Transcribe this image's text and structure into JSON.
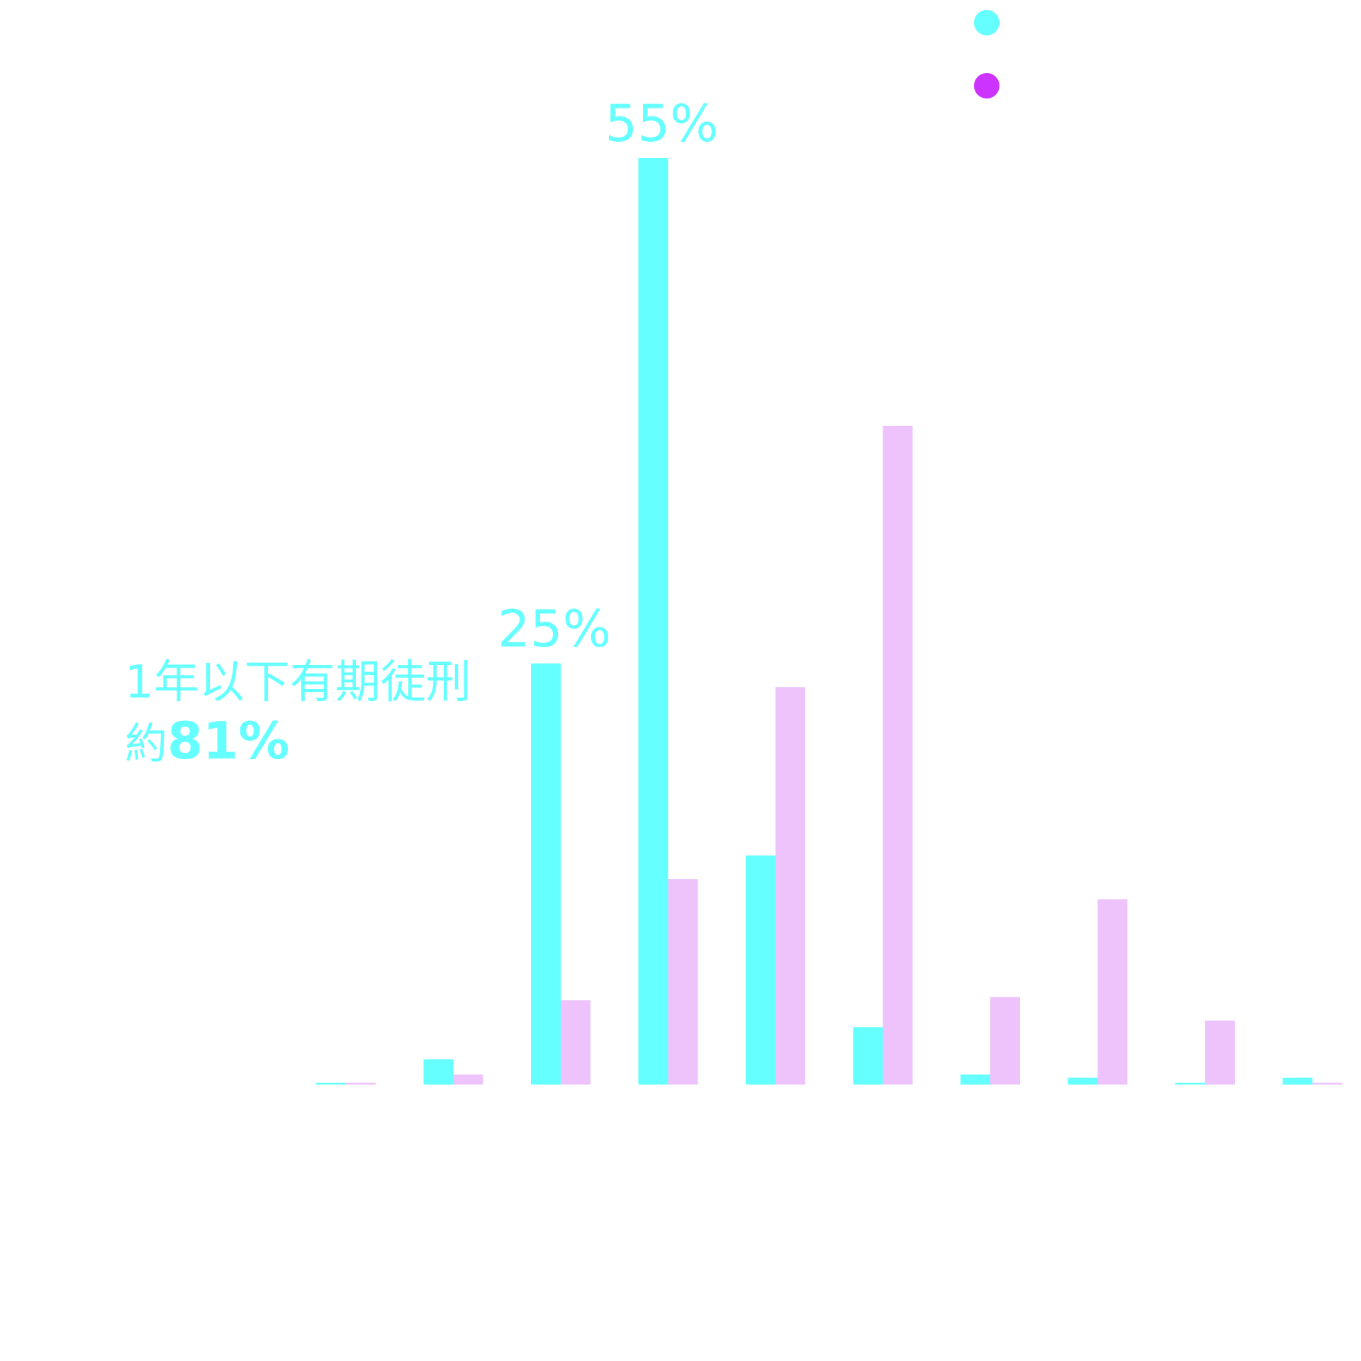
{
  "colors": {
    "series_a": "#66ffff",
    "series_b": "#eec3fb",
    "legend_b_dot": "#cc33ff"
  },
  "chart_data": {
    "type": "bar",
    "categories": [
      "",
      "",
      "",
      "",
      "",
      "",
      "",
      "",
      "",
      ""
    ],
    "series": [
      {
        "values": [
          0.1,
          1.5,
          25,
          55,
          13.6,
          3.4,
          0.6,
          0.4,
          0.1,
          0.4
        ]
      },
      {
        "values": [
          0.1,
          0.6,
          5,
          12.2,
          23.6,
          39.1,
          5.2,
          11,
          3.8,
          0.1
        ]
      }
    ],
    "ylim": [
      0,
      60
    ],
    "grid": false,
    "legend": "top-right",
    "data_labels": [
      {
        "series": 0,
        "index": 2,
        "text": "25%"
      },
      {
        "series": 0,
        "index": 3,
        "text": "55%"
      }
    ],
    "annotation": {
      "line1": "1年以下有期徒刑",
      "line2_prefix": "約",
      "line2_value": "81%"
    }
  }
}
